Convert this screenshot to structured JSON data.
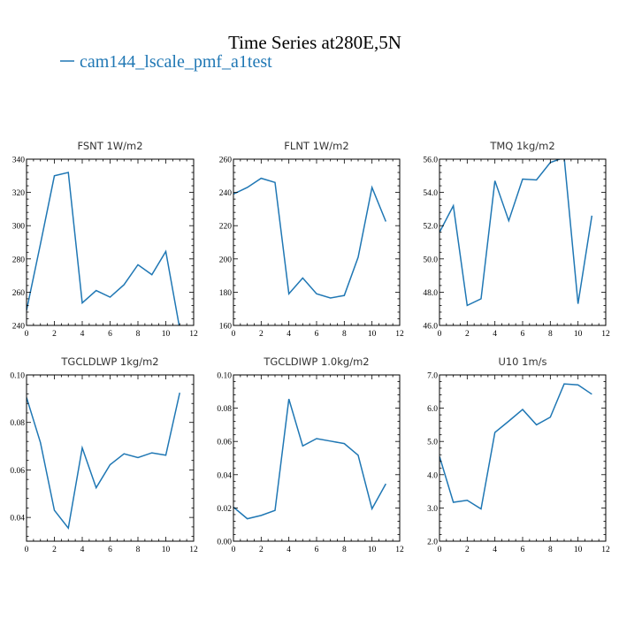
{
  "title": "Time Series at280E,5N",
  "legend": {
    "label": "cam144_lscale_pmf_a1test",
    "color": "#1f77b4"
  },
  "chart_data": [
    {
      "type": "line",
      "title": "FSNT  1W/m2",
      "x": [
        0,
        1,
        2,
        3,
        4,
        5,
        6,
        7,
        8,
        9,
        10,
        11
      ],
      "series": [
        {
          "name": "cam144_lscale_pmf_a1test",
          "values": [
            249,
            289,
            330,
            332,
            253.5,
            261,
            257,
            264.5,
            276.5,
            270.5,
            284.5,
            238
          ],
          "color": "#1f77b4"
        }
      ],
      "xlim": [
        0,
        12
      ],
      "ylim": [
        240,
        340
      ],
      "xticks": [
        0,
        2,
        4,
        6,
        8,
        10,
        12
      ],
      "yticks": [
        240,
        260,
        280,
        300,
        320,
        340
      ],
      "ytick_labels": [
        "240",
        "260",
        "280",
        "300",
        "320",
        "340"
      ]
    },
    {
      "type": "line",
      "title": "FLNT  1W/m2",
      "x": [
        0,
        1,
        2,
        3,
        4,
        5,
        6,
        7,
        8,
        9,
        10,
        11
      ],
      "series": [
        {
          "name": "cam144_lscale_pmf_a1test",
          "values": [
            239,
            243,
            248.5,
            246,
            179,
            188.5,
            179,
            176.5,
            178,
            201,
            243,
            222.5
          ],
          "color": "#1f77b4"
        }
      ],
      "xlim": [
        0,
        12
      ],
      "ylim": [
        160,
        260
      ],
      "xticks": [
        0,
        2,
        4,
        6,
        8,
        10,
        12
      ],
      "yticks": [
        160,
        180,
        200,
        220,
        240,
        260
      ],
      "ytick_labels": [
        "160",
        "180",
        "200",
        "220",
        "240",
        "260"
      ]
    },
    {
      "type": "line",
      "title": "TMQ  1kg/m2",
      "x": [
        0,
        1,
        2,
        3,
        4,
        5,
        6,
        7,
        8,
        9,
        10,
        11
      ],
      "series": [
        {
          "name": "cam144_lscale_pmf_a1test",
          "values": [
            51.6,
            53.2,
            47.2,
            47.6,
            54.7,
            52.3,
            54.8,
            54.75,
            55.8,
            56.1,
            47.3,
            52.6
          ],
          "color": "#1f77b4"
        }
      ],
      "xlim": [
        0,
        12
      ],
      "ylim": [
        46,
        56
      ],
      "xticks": [
        0,
        2,
        4,
        6,
        8,
        10,
        12
      ],
      "yticks": [
        46,
        48,
        50,
        52,
        54,
        56
      ],
      "ytick_labels": [
        "46.0",
        "48.0",
        "50.0",
        "52.0",
        "54.0",
        "56.0"
      ]
    },
    {
      "type": "line",
      "title": "TGCLDLWP  1kg/m2",
      "x": [
        0,
        1,
        2,
        3,
        4,
        5,
        6,
        7,
        8,
        9,
        10,
        11
      ],
      "series": [
        {
          "name": "cam144_lscale_pmf_a1test",
          "values": [
            0.0905,
            0.0715,
            0.043,
            0.0355,
            0.0693,
            0.0525,
            0.0622,
            0.0668,
            0.0652,
            0.0672,
            0.0662,
            0.0925
          ],
          "color": "#1f77b4"
        }
      ],
      "xlim": [
        0,
        12
      ],
      "ylim": [
        0.03,
        0.1
      ],
      "xticks": [
        0,
        2,
        4,
        6,
        8,
        10,
        12
      ],
      "yticks": [
        0.04,
        0.06,
        0.08,
        0.1
      ],
      "ytick_labels": [
        "0.04",
        "0.06",
        "0.08",
        "0.10"
      ]
    },
    {
      "type": "line",
      "title": "TGCLDIWP  1.0kg/m2",
      "x": [
        0,
        1,
        2,
        3,
        4,
        5,
        6,
        7,
        8,
        9,
        10,
        11
      ],
      "series": [
        {
          "name": "cam144_lscale_pmf_a1test",
          "values": [
            0.0205,
            0.0135,
            0.0155,
            0.0185,
            0.0855,
            0.0573,
            0.0617,
            0.0602,
            0.0587,
            0.0517,
            0.0195,
            0.0345
          ],
          "color": "#1f77b4"
        }
      ],
      "xlim": [
        0,
        12
      ],
      "ylim": [
        0,
        0.1
      ],
      "xticks": [
        0,
        2,
        4,
        6,
        8,
        10,
        12
      ],
      "yticks": [
        0,
        0.02,
        0.04,
        0.06,
        0.08,
        0.1
      ],
      "ytick_labels": [
        "0.00",
        "0.02",
        "0.04",
        "0.06",
        "0.08",
        "0.10"
      ]
    },
    {
      "type": "line",
      "title": "U10  1m/s",
      "x": [
        0,
        1,
        2,
        3,
        4,
        5,
        6,
        7,
        8,
        9,
        10,
        11
      ],
      "series": [
        {
          "name": "cam144_lscale_pmf_a1test",
          "values": [
            4.55,
            3.17,
            3.23,
            2.97,
            5.27,
            5.61,
            5.96,
            5.5,
            5.73,
            6.73,
            6.7,
            6.42
          ],
          "color": "#1f77b4"
        }
      ],
      "xlim": [
        0,
        12
      ],
      "ylim": [
        2,
        7
      ],
      "xticks": [
        0,
        2,
        4,
        6,
        8,
        10,
        12
      ],
      "yticks": [
        2,
        3,
        4,
        5,
        6,
        7
      ],
      "ytick_labels": [
        "2.0",
        "3.0",
        "4.0",
        "5.0",
        "6.0",
        "7.0"
      ]
    }
  ]
}
